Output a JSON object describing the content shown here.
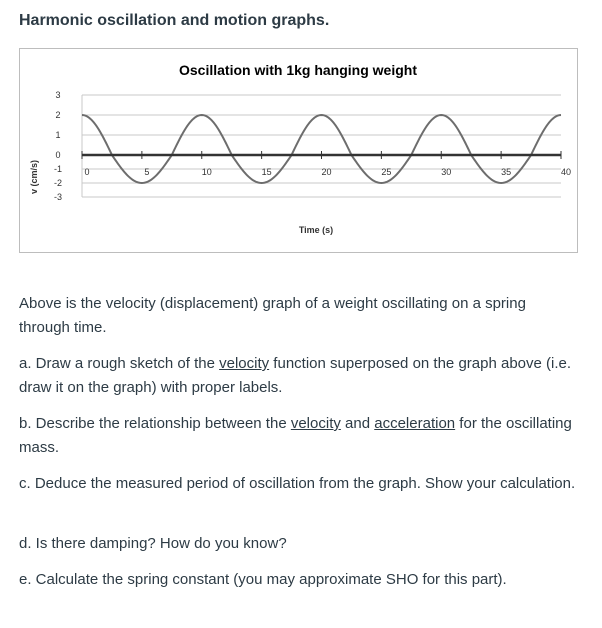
{
  "heading": "Harmonic oscillation and motion graphs.",
  "chart_data": {
    "type": "line",
    "title": "Oscillation with 1kg hanging weight",
    "xlabel": "Time (s)",
    "ylabel": "v (cm/s)",
    "xlim": [
      0,
      40
    ],
    "ylim": [
      -3,
      3
    ],
    "x_ticks": [
      0,
      5,
      10,
      15,
      20,
      25,
      30,
      35,
      40
    ],
    "y_ticks": [
      3,
      2,
      1,
      0,
      -1,
      -2,
      -3
    ],
    "series": [
      {
        "x": [
          0,
          2.5,
          5,
          7.5,
          10,
          12.5,
          15,
          17.5,
          20,
          22.5,
          25,
          27.5,
          30,
          32.5,
          35,
          37.5,
          40
        ],
        "y": [
          2,
          0,
          -2,
          0,
          2,
          0,
          -2,
          0,
          2,
          0,
          -2,
          0,
          2,
          0,
          -2,
          0,
          2
        ]
      }
    ],
    "grid": "horizontal",
    "legend": "none",
    "line_color": "#6d6d6d"
  },
  "paragraphs": {
    "p1": "Above is the velocity (displacement) graph of a weight oscillating on a spring through time.",
    "a_pre": "a. Draw a rough sketch of the ",
    "a_link": "velocity",
    "a_post": " function superposed on the graph above (i.e. draw it on the graph) with proper labels.",
    "b_pre": "b. Describe the relationship between the ",
    "b_link1": "velocity",
    "b_mid": " and ",
    "b_link2": "acceleration",
    "b_post": " for the oscillating mass.",
    "c": "c. Deduce the measured period of oscillation from the graph. Show your calculation.",
    "d": "d. Is there damping? How do you know?",
    "e": "e. Calculate the spring constant (you may approximate SHO for this part)."
  }
}
